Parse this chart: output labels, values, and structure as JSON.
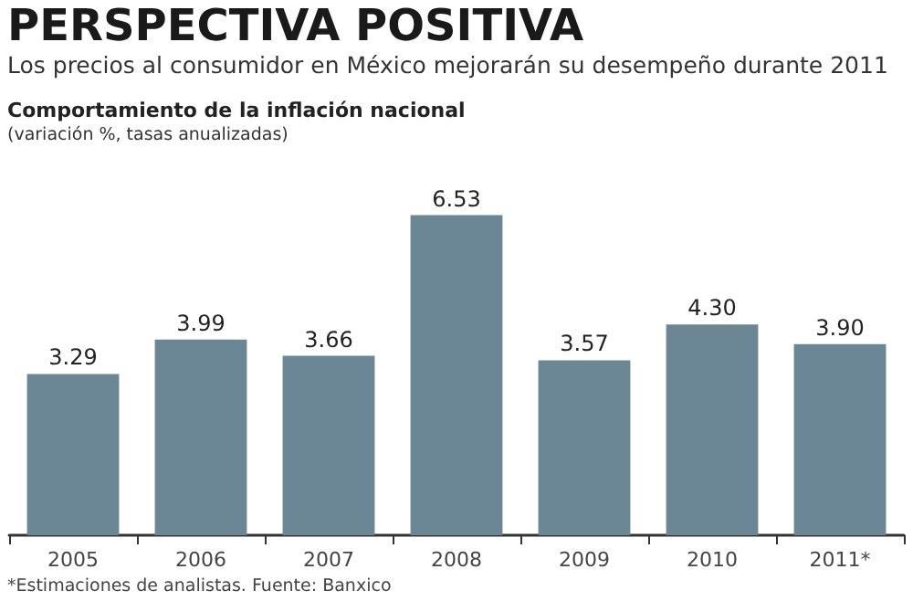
{
  "chart_data": {
    "type": "bar",
    "title": "PERSPECTIVA POSITIVA",
    "subtitle": "Los precios al consumidor en México mejorarán su desempeño durante 2011",
    "ylabel": "Comportamiento de la inflación nacional\n(variación %, tasas anualizadas)",
    "annotations": [
      "*Estimaciones de analistas. Fuente: Banxico"
    ],
    "categories": [
      "2005",
      "2006",
      "2007",
      "2008",
      "2009",
      "2010",
      "2011*"
    ],
    "values": [
      3.29,
      3.99,
      3.66,
      6.53,
      3.57,
      4.3,
      3.9
    ],
    "value_labels": [
      "3.29",
      "3.99",
      "3.66",
      "6.53",
      "3.57",
      "4.30",
      "3.90"
    ],
    "color": "#6b8796"
  }
}
